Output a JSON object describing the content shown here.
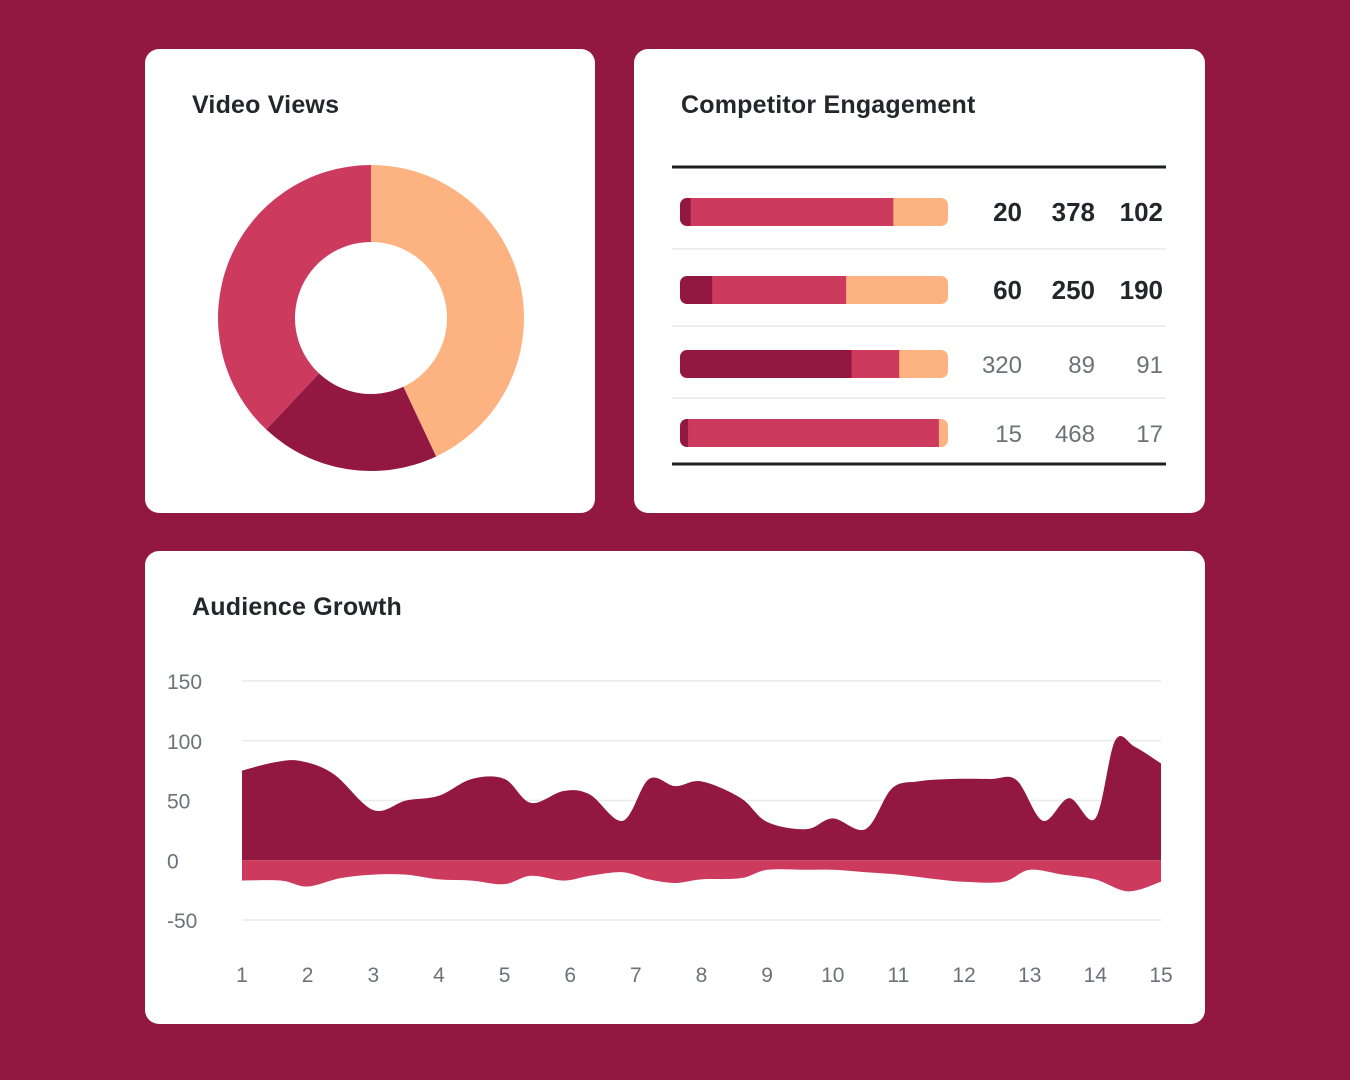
{
  "colors": {
    "background": "#921842",
    "dark": "#921842",
    "mid": "#cc3a5e",
    "light": "#fdb381",
    "text": "#23262b",
    "muted": "#6d7178"
  },
  "chart_data": [
    {
      "id": "video-views",
      "type": "pie",
      "title": "Video Views",
      "slices": [
        {
          "name": "light",
          "value": 43
        },
        {
          "name": "dark",
          "value": 19
        },
        {
          "name": "mid",
          "value": 38
        }
      ]
    },
    {
      "id": "competitor-engagement",
      "type": "bar",
      "stacked": true,
      "title": "Competitor Engagement",
      "rows": [
        {
          "values": [
            20,
            378,
            102
          ],
          "emphasis": true
        },
        {
          "values": [
            60,
            250,
            190
          ],
          "emphasis": true
        },
        {
          "values": [
            320,
            89,
            91
          ],
          "emphasis": false
        },
        {
          "values": [
            15,
            468,
            17
          ],
          "emphasis": false
        }
      ]
    },
    {
      "id": "audience-growth",
      "type": "area",
      "title": "Audience Growth",
      "x_ticks": [
        "1",
        "2",
        "3",
        "4",
        "5",
        "6",
        "7",
        "8",
        "9",
        "10",
        "11",
        "12",
        "13",
        "14",
        "15"
      ],
      "y_ticks": [
        "150",
        "100",
        "50",
        "0",
        "-50"
      ],
      "ylim": [
        -50,
        150
      ],
      "xlim": [
        1,
        15
      ],
      "series": [
        {
          "name": "positive",
          "x": [
            1,
            1.5,
            1.9,
            2.4,
            3,
            3.5,
            4,
            4.5,
            5,
            5.4,
            5.9,
            6.3,
            6.8,
            7.2,
            7.6,
            8,
            8.6,
            9,
            9.6,
            10,
            10.5,
            10.9,
            11.3,
            11.8,
            12.4,
            12.8,
            13.2,
            13.6,
            14,
            14.3,
            14.6,
            15
          ],
          "values": [
            75,
            82,
            83,
            72,
            42,
            50,
            54,
            68,
            68,
            48,
            58,
            55,
            33,
            68,
            62,
            66,
            52,
            32,
            26,
            35,
            26,
            60,
            66,
            68,
            68,
            67,
            33,
            52,
            35,
            100,
            95,
            81
          ]
        },
        {
          "name": "negative",
          "x": [
            1,
            1.6,
            2,
            2.5,
            3,
            3.5,
            4,
            4.5,
            5,
            5.4,
            5.9,
            6.3,
            6.8,
            7.2,
            7.6,
            8,
            8.6,
            9,
            9.6,
            10,
            10.5,
            11,
            11.6,
            12,
            12.6,
            13,
            13.5,
            14,
            14.5,
            15
          ],
          "values": [
            -17,
            -17,
            -22,
            -15,
            -12,
            -12,
            -16,
            -17,
            -20,
            -13,
            -17,
            -13,
            -10,
            -16,
            -19,
            -16,
            -15,
            -8,
            -8,
            -8,
            -10,
            -12,
            -16,
            -18,
            -18,
            -8,
            -12,
            -16,
            -26,
            -18
          ]
        }
      ]
    }
  ]
}
